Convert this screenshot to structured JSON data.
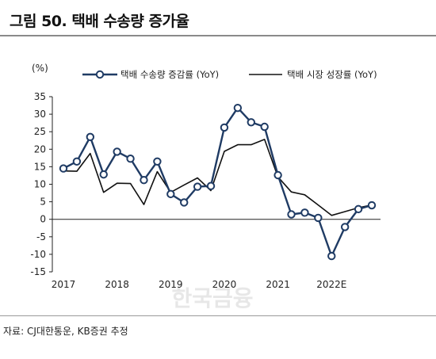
{
  "title": "그림 50. 택배 수송량 증가율",
  "source": "자료: CJ대한통운, KB증권 추정",
  "watermark": "한국금융",
  "chart_data": {
    "type": "line",
    "unit_label": "(%)",
    "ylim": [
      -15,
      35
    ],
    "yticks": [
      35,
      30,
      25,
      20,
      15,
      10,
      5,
      0,
      -5,
      -10,
      -15
    ],
    "xlim": [
      0,
      23
    ],
    "x_tick_labels": [
      {
        "label": "2017",
        "x": 0
      },
      {
        "label": "2018",
        "x": 4
      },
      {
        "label": "2019",
        "x": 8
      },
      {
        "label": "2020",
        "x": 12
      },
      {
        "label": "2021",
        "x": 16
      },
      {
        "label": "2022E",
        "x": 20
      }
    ],
    "grid": false,
    "legend_position": "top",
    "series": [
      {
        "name": "택배 수송량 증감률 (YoY)",
        "color": "#1f3b64",
        "marker": "circle",
        "x": [
          0,
          1,
          2,
          3,
          4,
          5,
          6,
          7,
          8,
          9,
          10,
          11,
          12,
          13,
          14,
          15,
          16,
          17,
          18,
          19,
          20,
          21,
          22,
          23
        ],
        "values": [
          14.5,
          16.5,
          23.5,
          12.8,
          19.3,
          17.3,
          11.2,
          16.5,
          7.2,
          4.8,
          9.3,
          9.5,
          26.2,
          31.8,
          27.7,
          26.4,
          12.6,
          1.4,
          1.9,
          0.4,
          -10.5,
          -2.2,
          2.9,
          4.0
        ]
      },
      {
        "name": "택배 시장 성장률 (YoY)",
        "color": "#111111",
        "marker": "none",
        "x": [
          0,
          1,
          2,
          3,
          4,
          5,
          6,
          7,
          8,
          9,
          10,
          11,
          12,
          13,
          14,
          15,
          16,
          17,
          18,
          19,
          20,
          21,
          22,
          23
        ],
        "values": [
          13.8,
          13.7,
          18.8,
          7.7,
          10.3,
          10.2,
          4.2,
          13.6,
          7.7,
          9.8,
          11.8,
          8.2,
          19.4,
          21.3,
          21.3,
          22.8,
          12.1,
          7.8,
          7.0,
          4.1,
          1.1,
          2.2,
          3.3,
          4.1
        ]
      }
    ]
  }
}
